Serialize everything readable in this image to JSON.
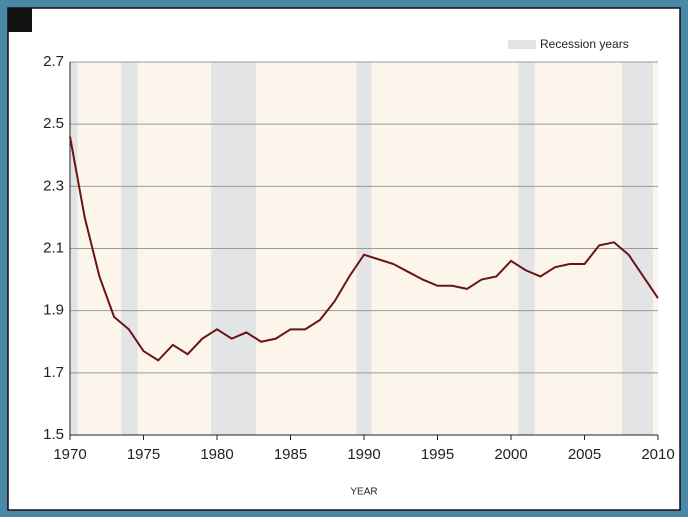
{
  "chart_data": {
    "type": "line",
    "x_label": "YEAR",
    "x": [
      1970,
      1971,
      1972,
      1973,
      1974,
      1975,
      1976,
      1977,
      1978,
      1979,
      1980,
      1981,
      1982,
      1983,
      1984,
      1985,
      1986,
      1987,
      1988,
      1989,
      1990,
      1991,
      1992,
      1993,
      1994,
      1995,
      1996,
      1997,
      1998,
      1999,
      2000,
      2001,
      2002,
      2003,
      2004,
      2005,
      2006,
      2007,
      2008,
      2009,
      2010
    ],
    "series": [
      {
        "color": "#6b1414",
        "values": [
          2.46,
          2.2,
          2.01,
          1.88,
          1.84,
          1.77,
          1.74,
          1.79,
          1.76,
          1.81,
          1.84,
          1.81,
          1.83,
          1.8,
          1.81,
          1.84,
          1.84,
          1.87,
          1.93,
          2.01,
          2.08,
          2.065,
          2.05,
          2.025,
          2.0,
          1.98,
          1.98,
          1.97,
          2.0,
          2.01,
          2.06,
          2.03,
          2.01,
          2.04,
          2.05,
          2.05,
          2.11,
          2.12,
          2.08,
          2.01,
          1.94
        ]
      }
    ],
    "recessions": {
      "name": "Recession years",
      "color": "#e3e4e6",
      "periods": [
        [
          1970,
          1970.5
        ],
        [
          1973.5,
          1974.6
        ],
        [
          1979.6,
          1982.65
        ],
        [
          1989.5,
          1990.5
        ],
        [
          2000.5,
          2001.6
        ],
        [
          2007.55,
          2009.65
        ]
      ]
    },
    "background": "#fbf5ec",
    "xlim": [
      1970,
      2010
    ],
    "xticks": [
      1970,
      1975,
      1980,
      1985,
      1990,
      1995,
      2000,
      2005,
      2010
    ],
    "ylim": [
      1.5,
      2.7
    ],
    "yticks": [
      1.5,
      1.7,
      1.9,
      2.1,
      2.3,
      2.5,
      2.7
    ],
    "grid": true
  }
}
